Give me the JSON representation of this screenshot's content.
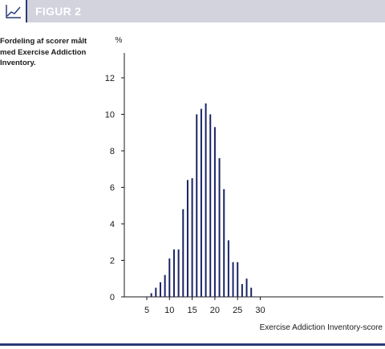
{
  "header": {
    "title": "FIGUR 2",
    "icon": "line-chart-icon"
  },
  "caption": "Fordeling af scorer målt med Exercise Addiction Inventory.",
  "colors": {
    "header_bg": "#d2d3dd",
    "accent": "#2a3a78",
    "bar": "#1a2466"
  },
  "chart_data": {
    "type": "bar",
    "title": "",
    "xlabel": "Exercise Addiction Inventory-score",
    "ylabel": "%",
    "xlim": [
      3,
      32
    ],
    "ylim": [
      0,
      14
    ],
    "xticks": [
      5,
      10,
      15,
      20,
      25,
      30
    ],
    "yticks": [
      0,
      2,
      4,
      6,
      8,
      10,
      12
    ],
    "x": [
      6,
      7,
      8,
      9,
      10,
      11,
      12,
      13,
      14,
      15,
      16,
      17,
      18,
      19,
      20,
      21,
      22,
      23,
      24,
      25,
      26,
      27,
      28
    ],
    "values": [
      0.2,
      0.5,
      0.8,
      1.2,
      2.1,
      2.6,
      2.6,
      4.8,
      6.4,
      6.5,
      10.0,
      10.3,
      10.6,
      10.0,
      9.3,
      7.6,
      5.9,
      3.1,
      1.9,
      1.9,
      0.7,
      1.0,
      0.5
    ]
  }
}
